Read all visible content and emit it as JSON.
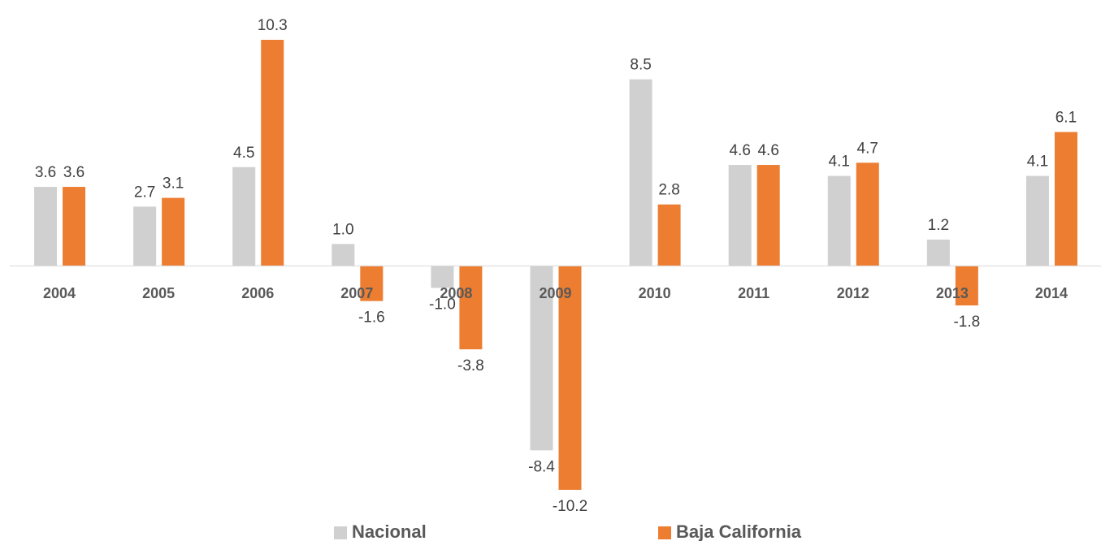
{
  "chart_data": {
    "type": "bar",
    "categories": [
      "2004",
      "2005",
      "2006",
      "2007",
      "2008",
      "2009",
      "2010",
      "2011",
      "2012",
      "2013",
      "2014"
    ],
    "series": [
      {
        "name": "Nacional",
        "color": "#d0d0d0",
        "values": [
          3.6,
          2.7,
          4.5,
          1.0,
          -1.0,
          -8.4,
          8.5,
          4.6,
          4.1,
          1.2,
          4.1
        ],
        "value_labels": [
          "3.6",
          "2.7",
          "4.5",
          "1.0",
          "-1.0",
          "-8.4",
          "8.5",
          "4.6",
          "4.1",
          "1.2",
          "4.1"
        ]
      },
      {
        "name": "Baja California",
        "color": "#ed7d31",
        "values": [
          3.6,
          3.1,
          10.3,
          -1.6,
          -3.8,
          -10.2,
          2.8,
          4.6,
          4.7,
          -1.8,
          6.1
        ],
        "value_labels": [
          "3.6",
          "3.1",
          "10.3",
          "-1.6",
          "-3.8",
          "-10.2",
          "2.8",
          "4.6",
          "4.7",
          "-1.8",
          "6.1"
        ]
      }
    ]
  }
}
